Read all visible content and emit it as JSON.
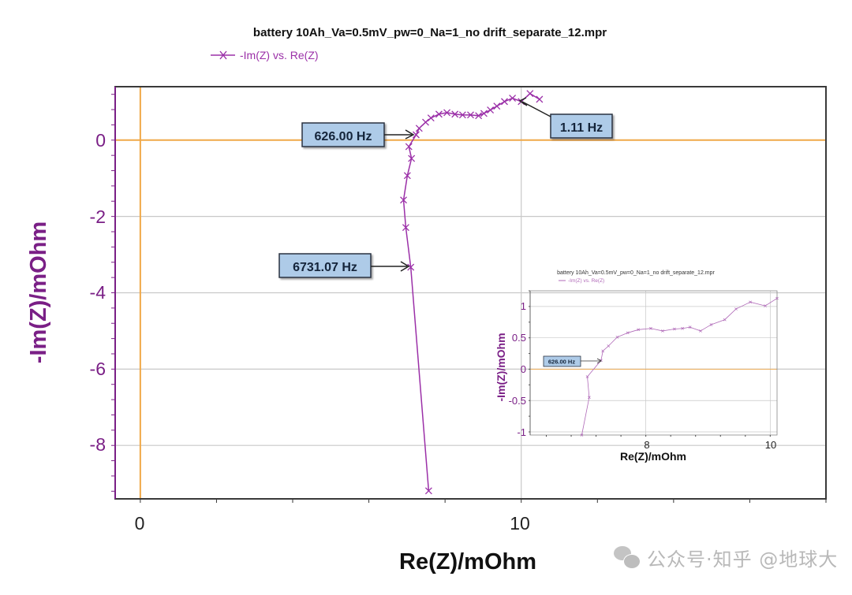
{
  "chart_data": [
    {
      "type": "scatter",
      "mode": "line+markers",
      "title": "battery 10Ah_Va=0.5mV_pw=0_Na=1_no drift_separate_12.mpr",
      "legend": [
        "-Im(Z) vs. Re(Z)"
      ],
      "legend_position": "top-left",
      "xlabel": "Re(Z)/mOhm",
      "ylabel": "-Im(Z)/mOhm",
      "xlim": [
        -0.66,
        18.0
      ],
      "ylim": [
        -9.4,
        1.4
      ],
      "xticks": [
        0,
        10
      ],
      "yticks": [
        0,
        -2,
        -4,
        -6,
        -8
      ],
      "grid": true,
      "series": [
        {
          "name": "-Im(Z) vs. Re(Z)",
          "color": "#9b30a8",
          "x": [
            7.57,
            7.1,
            6.97,
            6.91,
            7.01,
            7.12,
            7.05,
            7.24,
            7.32,
            7.49,
            7.63,
            7.84,
            8.05,
            8.26,
            8.46,
            8.67,
            8.88,
            9.02,
            9.19,
            9.36,
            9.56,
            9.77,
            10.0,
            10.23,
            10.48
          ],
          "y": [
            -9.19,
            -3.33,
            -2.29,
            -1.57,
            -0.93,
            -0.48,
            -0.17,
            0.14,
            0.31,
            0.47,
            0.58,
            0.68,
            0.72,
            0.68,
            0.66,
            0.66,
            0.64,
            0.7,
            0.79,
            0.89,
            1.01,
            1.1,
            1.01,
            1.22,
            1.07
          ]
        }
      ],
      "annotations": [
        {
          "text": "626.00 Hz",
          "x": 7.24,
          "y": 0.14
        },
        {
          "text": "6731.07 Hz",
          "x": 7.1,
          "y": -3.33
        },
        {
          "text": "1.11 Hz",
          "x": 10.0,
          "y": 1.01
        }
      ]
    },
    {
      "type": "scatter",
      "mode": "line+markers",
      "title": "battery 10Ah_Va=0.5mV_pw=0_Na=1_no drift_separate_12.mpr",
      "legend": [
        "-Im(Z) vs. Re(Z)"
      ],
      "xlabel": "Re(Z)/mOhm",
      "ylabel": "-Im(Z)/mOhm",
      "xlim": [
        6.14,
        10.11
      ],
      "ylim": [
        -1.05,
        1.25
      ],
      "xticks": [
        8,
        10
      ],
      "yticks": [
        1,
        0.5,
        0,
        -0.5,
        -1
      ],
      "grid": true,
      "series": [
        {
          "name": "-Im(Z) vs. Re(Z)",
          "color": "#b06ab8",
          "x": [
            6.97,
            7.09,
            7.06,
            7.28,
            7.31,
            7.4,
            7.54,
            7.71,
            7.88,
            8.08,
            8.27,
            8.46,
            8.59,
            8.71,
            8.88,
            9.05,
            9.27,
            9.45,
            9.68,
            9.92,
            10.11
          ],
          "y": [
            -1.05,
            -0.45,
            -0.12,
            0.14,
            0.29,
            0.37,
            0.51,
            0.58,
            0.63,
            0.65,
            0.61,
            0.64,
            0.65,
            0.67,
            0.61,
            0.71,
            0.79,
            0.96,
            1.07,
            1.01,
            1.13
          ]
        }
      ],
      "annotations": [
        {
          "text": "626.00 Hz",
          "x": 7.28,
          "y": 0.14
        }
      ]
    }
  ],
  "main": {
    "title": "battery 10Ah_Va=0.5mV_pw=0_Na=1_no drift_separate_12.mpr",
    "legend_label": "-Im(Z) vs. Re(Z)",
    "xlabel": "Re(Z)/mOhm",
    "ylabel": "-Im(Z)/mOhm",
    "xtick_labels": [
      "0",
      "10"
    ],
    "ytick_labels": [
      "0",
      "-2",
      "-4",
      "-6",
      "-8"
    ],
    "annotations": [
      "626.00 Hz",
      "6731.07 Hz",
      "1.11 Hz"
    ]
  },
  "inset": {
    "title": "battery 10Ah_Va=0.5mV_pw=0_Na=1_no drift_separate_12.mpr",
    "legend_label": "-Im(Z) vs. Re(Z)",
    "xlabel": "Re(Z)/mOhm",
    "ylabel": "-Im(Z)/mOhm",
    "xtick_labels": [
      "8",
      "10"
    ],
    "ytick_labels": [
      "1",
      "0.5",
      "0",
      "-0.5",
      "-1"
    ],
    "annotation": "626.00 Hz"
  },
  "watermark": {
    "text": "公众号·知乎 @地球大"
  },
  "colors": {
    "series": "#9b30a8",
    "axis_purple": "#7a1f86",
    "zero_line": "#f0a848",
    "grid": "#c8c8c8",
    "label_fill": "#aecbe8",
    "label_text": "#14243a"
  }
}
